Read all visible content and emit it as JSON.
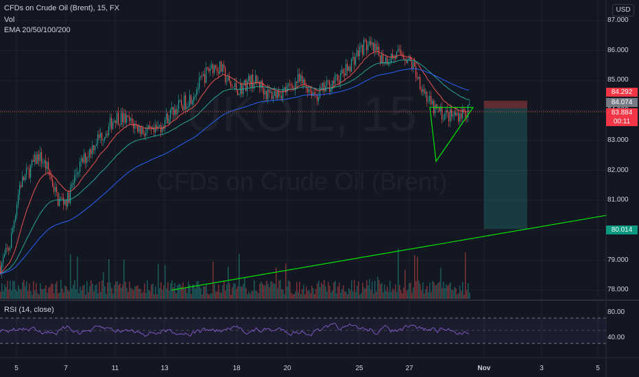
{
  "legend": {
    "title": "CFDs on Crude Oil (Brent), 15, FX",
    "vol": "Vol",
    "ema": "EMA 20/50/100/200"
  },
  "rsi": {
    "label": "RSI (14, close)",
    "upper": 80,
    "lower": 40
  },
  "watermark": {
    "symbol": "UKOIL, 15",
    "name": "CFDs on Crude Oil (Brent)"
  },
  "currency": "USD",
  "price_axis": [
    "87.000",
    "86.000",
    "85.000",
    "84.000",
    "83.000",
    "82.000",
    "81.000",
    "80.000",
    "79.000",
    "78.000"
  ],
  "rsi_axis": [
    "80.00",
    "40.00"
  ],
  "badges": {
    "sl": "84.292",
    "current": "84.074",
    "last": "83.884",
    "countdown": "00:11",
    "tp": "80.014"
  },
  "time_axis": [
    "5",
    "7",
    "11",
    "13",
    "18",
    "20",
    "25",
    "27",
    "Nov",
    "3",
    "5"
  ],
  "colors": {
    "background": "#131722",
    "up": "#26a69a",
    "down": "#ef5350",
    "ema20": "#ef5350",
    "ema50": "#26a69a",
    "ema100": "#2962ff",
    "trendline": "#00e600",
    "rsi": "#7e57c2",
    "tp_zone": "#26a69a",
    "sl_zone": "#ef5350"
  },
  "chart_data": {
    "type": "line",
    "ylim": [
      77.7,
      87.2
    ],
    "ema_path_y": [
      78.8,
      79.5,
      81.5,
      82.0,
      82.5,
      82.0,
      81.0,
      81.0,
      82.0,
      82.5,
      83.0,
      83.3,
      83.8,
      83.7,
      83.5,
      83.3,
      83.2,
      83.6,
      84.0,
      84.2,
      84.5,
      85.0,
      85.5,
      85.4,
      84.8,
      84.7,
      85.0,
      84.9,
      84.5,
      84.6,
      84.7,
      85.0,
      84.8,
      84.5,
      84.8,
      85.0,
      85.3,
      85.8,
      86.2,
      86.0,
      85.7,
      85.8,
      85.9,
      85.5,
      84.8,
      84.1,
      83.9,
      83.8,
      83.9,
      84.0
    ],
    "asc_trendline": [
      [
        250,
        78.0
      ],
      [
        885,
        80.5
      ]
    ],
    "triangle": [
      [
        627,
        84.1
      ],
      [
        690,
        84.1
      ],
      [
        636,
        82.3
      ]
    ]
  }
}
